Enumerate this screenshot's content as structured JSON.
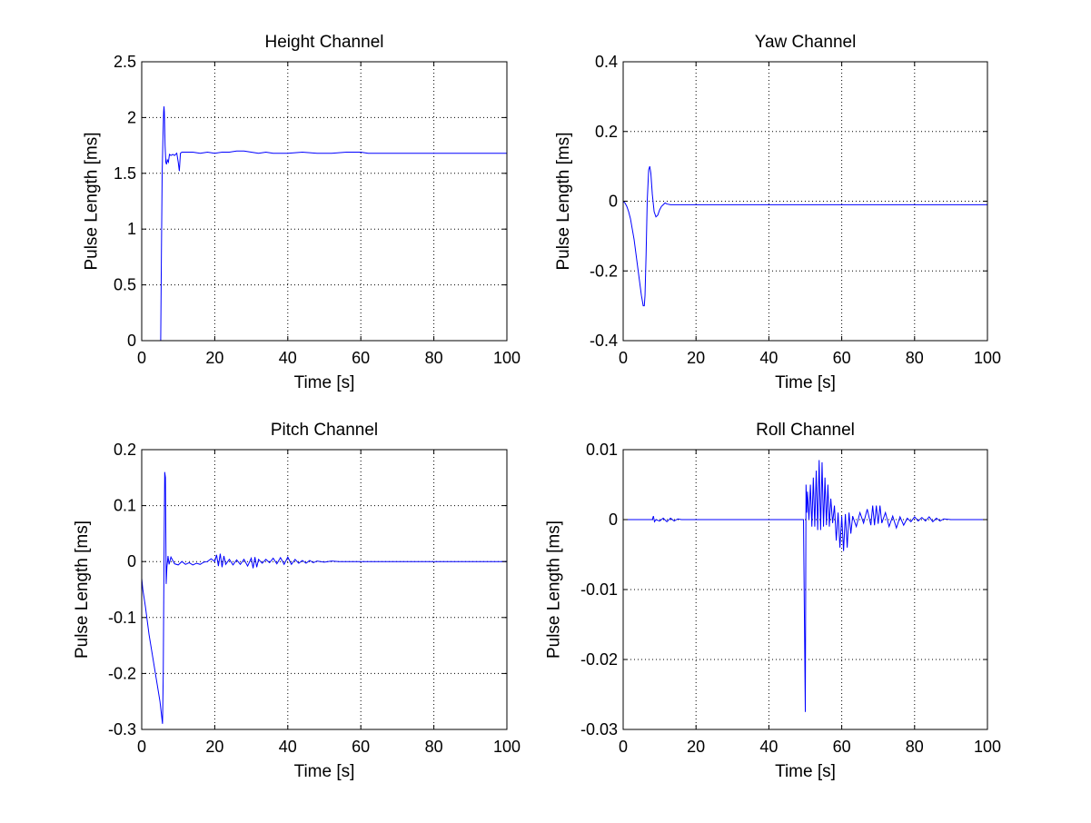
{
  "figure": {
    "background": "#ffffff"
  },
  "style": {
    "line_color": "#0000ff",
    "axis_color": "#000000",
    "grid_color": "#000000"
  },
  "chart_data": [
    {
      "type": "line",
      "title": "Height Channel",
      "xlabel": "Time [s]",
      "ylabel": "Pulse Length [ms]",
      "xlim": [
        0,
        100
      ],
      "ylim": [
        0,
        2.5
      ],
      "xticks": [
        0,
        20,
        40,
        60,
        80,
        100
      ],
      "yticks": [
        0,
        0.5,
        1,
        1.5,
        2,
        2.5
      ],
      "xticklabels": [
        "0",
        "20",
        "40",
        "60",
        "80",
        "100"
      ],
      "yticklabels": [
        "0",
        "0.5",
        "1",
        "1.5",
        "2",
        "2.5"
      ],
      "grid": true,
      "series": [
        {
          "x": [
            5.2,
            5.4,
            5.6,
            5.8,
            6.0,
            6.1,
            6.2,
            6.4,
            6.6,
            6.8,
            7.0,
            7.3,
            7.6,
            8.0,
            8.5,
            9.0,
            9.6,
            10.0,
            10.3,
            10.6,
            11.0,
            12,
            14,
            16,
            18,
            20,
            22,
            24,
            26,
            28,
            30,
            32,
            34,
            36,
            38,
            40,
            44,
            48,
            52,
            56,
            60,
            62,
            70,
            80,
            90,
            100
          ],
          "y": [
            0.0,
            0.8,
            1.5,
            1.8,
            2.05,
            2.1,
            2.05,
            1.75,
            1.6,
            1.58,
            1.62,
            1.6,
            1.67,
            1.66,
            1.67,
            1.66,
            1.68,
            1.6,
            1.52,
            1.68,
            1.69,
            1.69,
            1.69,
            1.68,
            1.69,
            1.68,
            1.69,
            1.69,
            1.7,
            1.7,
            1.69,
            1.68,
            1.69,
            1.68,
            1.68,
            1.68,
            1.69,
            1.68,
            1.68,
            1.69,
            1.69,
            1.68,
            1.68,
            1.68,
            1.68,
            1.68
          ]
        }
      ]
    },
    {
      "type": "line",
      "title": "Yaw Channel",
      "xlabel": "Time [s]",
      "ylabel": "Pulse Length [ms]",
      "xlim": [
        0,
        100
      ],
      "ylim": [
        -0.4,
        0.4
      ],
      "xticks": [
        0,
        20,
        40,
        60,
        80,
        100
      ],
      "yticks": [
        -0.4,
        -0.2,
        0,
        0.2,
        0.4
      ],
      "xticklabels": [
        "0",
        "20",
        "40",
        "60",
        "80",
        "100"
      ],
      "yticklabels": [
        "-0.4",
        "-0.2",
        "0",
        "0.2",
        "0.4"
      ],
      "grid": true,
      "series": [
        {
          "x": [
            0,
            0.5,
            1,
            1.5,
            2,
            2.5,
            3,
            3.5,
            4,
            4.5,
            5,
            5.5,
            5.8,
            6.0,
            6.3,
            6.6,
            7.0,
            7.3,
            7.6,
            8.0,
            8.5,
            9.0,
            9.5,
            10,
            10.5,
            11,
            11.5,
            12,
            13,
            14,
            20,
            40,
            60,
            80,
            100
          ],
          "y": [
            0,
            -0.005,
            -0.015,
            -0.03,
            -0.05,
            -0.08,
            -0.11,
            -0.15,
            -0.19,
            -0.23,
            -0.27,
            -0.3,
            -0.3,
            -0.27,
            -0.15,
            0.0,
            0.09,
            0.1,
            0.08,
            0.02,
            -0.03,
            -0.045,
            -0.04,
            -0.025,
            -0.015,
            -0.01,
            -0.005,
            -0.008,
            -0.01,
            -0.01,
            -0.01,
            -0.01,
            -0.01,
            -0.01,
            -0.01
          ]
        }
      ]
    },
    {
      "type": "line",
      "title": "Pitch Channel",
      "xlabel": "Time [s]",
      "ylabel": "Pulse Length [ms]",
      "xlim": [
        0,
        100
      ],
      "ylim": [
        -0.3,
        0.2
      ],
      "xticks": [
        0,
        20,
        40,
        60,
        80,
        100
      ],
      "yticks": [
        -0.3,
        -0.2,
        -0.1,
        0,
        0.1,
        0.2
      ],
      "xticklabels": [
        "0",
        "20",
        "40",
        "60",
        "80",
        "100"
      ],
      "yticklabels": [
        "-0.3",
        "-0.2",
        "-0.1",
        "0",
        "0.1",
        "0.2"
      ],
      "grid": true,
      "series": [
        {
          "x": [
            0,
            0.3,
            1,
            2,
            3,
            4,
            5,
            5.7,
            5.9,
            6.1,
            6.3,
            6.5,
            6.7,
            6.9,
            7.2,
            7.5,
            8,
            9,
            10,
            11,
            12,
            13,
            14,
            15,
            16,
            17,
            18,
            19,
            20,
            20.5,
            21,
            21.5,
            22,
            22.5,
            23,
            24,
            25,
            26,
            27,
            28,
            29,
            30,
            30.5,
            31,
            31.5,
            32,
            33,
            34,
            35,
            36,
            37,
            38,
            39,
            40,
            41,
            42,
            43,
            44,
            45,
            46,
            47,
            48,
            50,
            52,
            54,
            56,
            60,
            70,
            80,
            90,
            100
          ],
          "y": [
            -0.03,
            -0.05,
            -0.08,
            -0.13,
            -0.17,
            -0.21,
            -0.25,
            -0.29,
            -0.2,
            0.0,
            0.16,
            0.15,
            -0.04,
            -0.01,
            0.01,
            -0.005,
            0.008,
            -0.004,
            -0.006,
            0.0,
            -0.005,
            -0.002,
            -0.006,
            -0.003,
            -0.005,
            -0.001,
            0.0,
            0.005,
            0.0,
            0.012,
            -0.008,
            0.014,
            -0.01,
            0.01,
            -0.005,
            0.004,
            -0.006,
            0.003,
            -0.005,
            0.004,
            -0.008,
            0.006,
            -0.012,
            0.008,
            -0.01,
            0.004,
            -0.003,
            0.004,
            -0.002,
            0.006,
            -0.004,
            0.007,
            -0.005,
            0.008,
            -0.005,
            0.004,
            -0.003,
            0.002,
            -0.003,
            0.002,
            -0.002,
            0.001,
            -0.001,
            0.001,
            0.0,
            0.0,
            0.0,
            0.0,
            0.0,
            0.0,
            0.0
          ]
        }
      ]
    },
    {
      "type": "line",
      "title": "Roll Channel",
      "xlabel": "Time [s]",
      "ylabel": "Pulse Length [ms]",
      "xlim": [
        0,
        100
      ],
      "ylim": [
        -0.03,
        0.01
      ],
      "xticks": [
        0,
        20,
        40,
        60,
        80,
        100
      ],
      "yticks": [
        -0.03,
        -0.02,
        -0.01,
        0,
        0.01
      ],
      "xticklabels": [
        "0",
        "20",
        "40",
        "60",
        "80",
        "100"
      ],
      "yticklabels": [
        "-0.03",
        "-0.02",
        "-0.01",
        "0",
        "0.01"
      ],
      "grid": true,
      "series": [
        {
          "x": [
            0,
            8,
            8.3,
            8.6,
            9,
            10,
            11,
            12,
            13,
            14,
            15,
            16,
            20,
            30,
            40,
            49.5,
            50,
            50.2,
            50.4,
            50.6,
            51,
            51.4,
            51.8,
            52.2,
            52.6,
            53,
            53.4,
            53.8,
            54.2,
            54.6,
            55,
            55.4,
            55.8,
            56.2,
            56.6,
            57,
            57.5,
            58,
            58.5,
            59,
            59.5,
            60,
            60.5,
            61,
            61.5,
            62,
            62.5,
            63,
            64,
            65,
            66,
            67,
            68,
            68.5,
            69,
            69.5,
            70,
            70.5,
            71,
            72,
            73,
            74,
            75,
            76,
            77,
            78,
            79,
            80,
            81,
            82,
            83,
            84,
            85,
            86,
            87,
            88,
            90,
            95,
            100
          ],
          "y": [
            0,
            0,
            0.0005,
            -0.0003,
            0,
            -0.0002,
            0.0002,
            -0.0003,
            0.0002,
            -0.0002,
            0.0001,
            0,
            0,
            0,
            0,
            0,
            -0.0275,
            0.005,
            0.001,
            0.004,
            0.0,
            0.005,
            -0.001,
            0.006,
            -0.001,
            0.007,
            -0.0015,
            0.0085,
            -0.0015,
            0.0082,
            -0.001,
            0.006,
            -0.0008,
            0.005,
            -0.001,
            0.003,
            -0.0005,
            0.002,
            -0.003,
            0.001,
            -0.004,
            0.0005,
            -0.0045,
            0.0008,
            -0.004,
            0.001,
            -0.002,
            0.0005,
            -0.001,
            0.001,
            -0.0005,
            0.0015,
            -0.0008,
            0.002,
            -0.0008,
            0.002,
            -0.0006,
            0.002,
            -0.0005,
            0.001,
            -0.001,
            0.0005,
            -0.0012,
            0.0004,
            -0.0008,
            0.0002,
            -0.0003,
            0.0004,
            -0.0002,
            0.0003,
            -0.0002,
            0.0004,
            -0.0003,
            0.0002,
            -0.0002,
            0.0001,
            0,
            0,
            0
          ]
        }
      ]
    }
  ]
}
